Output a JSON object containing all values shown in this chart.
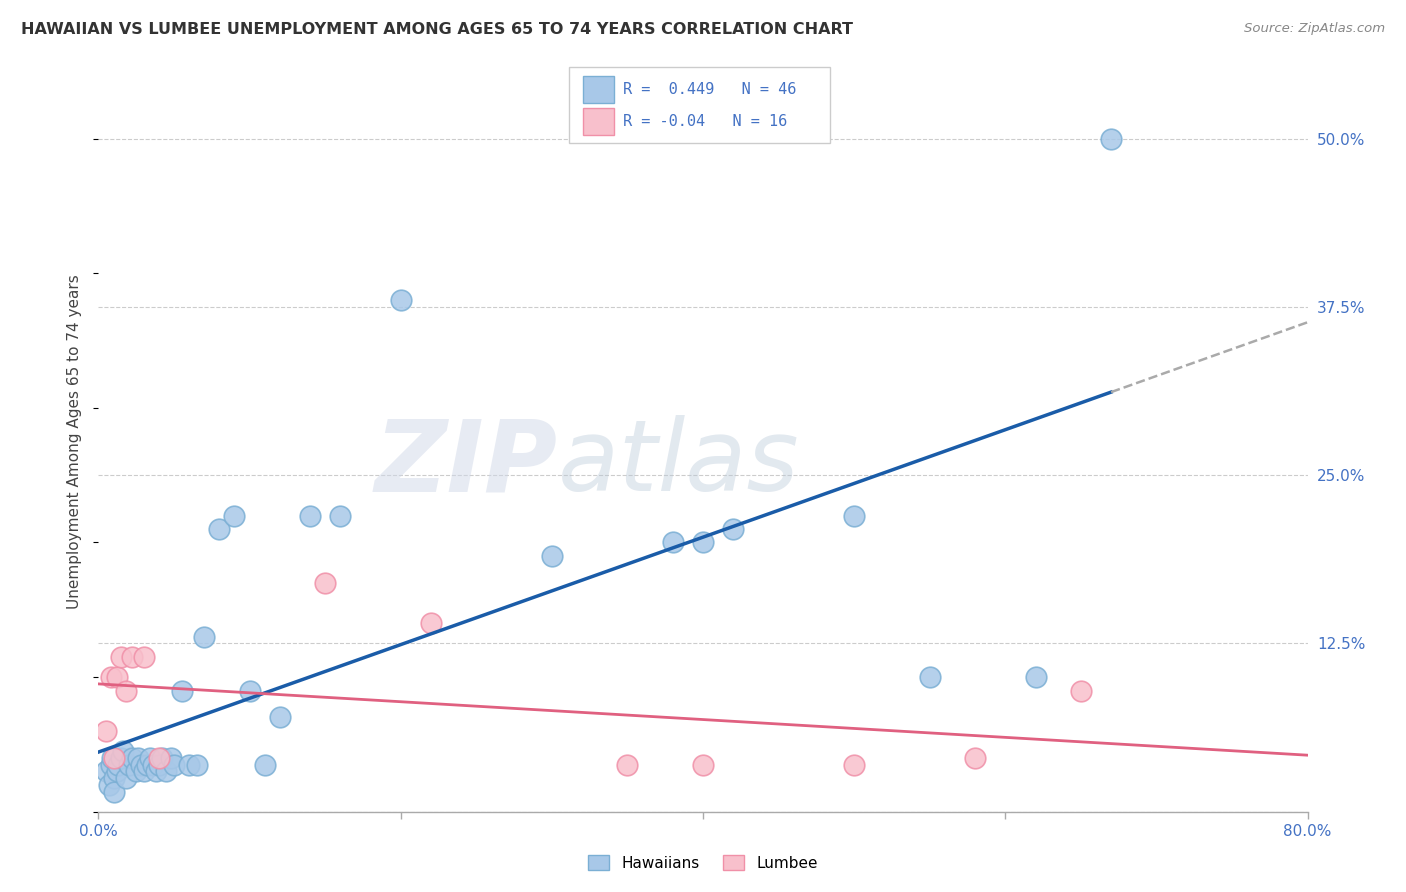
{
  "title": "HAWAIIAN VS LUMBEE UNEMPLOYMENT AMONG AGES 65 TO 74 YEARS CORRELATION CHART",
  "source": "Source: ZipAtlas.com",
  "ylabel": "Unemployment Among Ages 65 to 74 years",
  "xlim": [
    0.0,
    0.8
  ],
  "ylim": [
    0.0,
    0.55
  ],
  "y_ticks": [
    0.0,
    0.125,
    0.25,
    0.375,
    0.5
  ],
  "y_tick_labels": [
    "",
    "12.5%",
    "25.0%",
    "37.5%",
    "50.0%"
  ],
  "x_ticks": [
    0.0,
    0.2,
    0.4,
    0.6,
    0.8
  ],
  "hawaiian_color": "#a8c8e8",
  "hawaiian_edge_color": "#7bafd4",
  "lumbee_color": "#f8c0cc",
  "lumbee_edge_color": "#f090a8",
  "trendline_hawaiian_color": "#1a5ca8",
  "trendline_lumbee_color": "#e06080",
  "trendline_extension_color": "#aaaaaa",
  "R_hawaiian": 0.449,
  "N_hawaiian": 46,
  "R_lumbee": -0.04,
  "N_lumbee": 16,
  "hawaiian_x": [
    0.005,
    0.007,
    0.008,
    0.009,
    0.01,
    0.01,
    0.012,
    0.013,
    0.015,
    0.016,
    0.018,
    0.02,
    0.022,
    0.025,
    0.026,
    0.028,
    0.03,
    0.032,
    0.034,
    0.036,
    0.038,
    0.04,
    0.042,
    0.045,
    0.048,
    0.05,
    0.055,
    0.06,
    0.065,
    0.07,
    0.08,
    0.09,
    0.1,
    0.11,
    0.12,
    0.14,
    0.16,
    0.2,
    0.3,
    0.38,
    0.4,
    0.42,
    0.5,
    0.55,
    0.62,
    0.67
  ],
  "hawaiian_y": [
    0.03,
    0.02,
    0.035,
    0.04,
    0.025,
    0.015,
    0.03,
    0.035,
    0.04,
    0.045,
    0.025,
    0.035,
    0.04,
    0.03,
    0.04,
    0.035,
    0.03,
    0.035,
    0.04,
    0.035,
    0.03,
    0.035,
    0.04,
    0.03,
    0.04,
    0.035,
    0.09,
    0.035,
    0.035,
    0.13,
    0.21,
    0.22,
    0.09,
    0.035,
    0.07,
    0.22,
    0.22,
    0.38,
    0.19,
    0.2,
    0.2,
    0.21,
    0.22,
    0.1,
    0.1,
    0.5
  ],
  "lumbee_x": [
    0.005,
    0.008,
    0.01,
    0.012,
    0.015,
    0.018,
    0.022,
    0.03,
    0.04,
    0.15,
    0.22,
    0.35,
    0.4,
    0.5,
    0.58,
    0.65
  ],
  "lumbee_y": [
    0.06,
    0.1,
    0.04,
    0.1,
    0.115,
    0.09,
    0.115,
    0.115,
    0.04,
    0.17,
    0.14,
    0.035,
    0.035,
    0.035,
    0.04,
    0.09
  ],
  "watermark_zip": "ZIP",
  "watermark_atlas": "atlas",
  "background_color": "#ffffff",
  "grid_color": "#cccccc"
}
